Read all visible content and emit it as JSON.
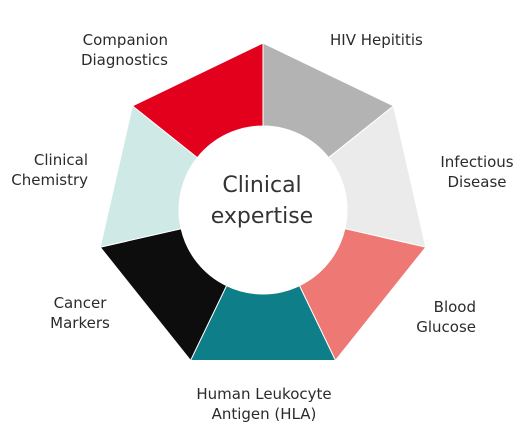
{
  "center": {
    "line1": "Clinical",
    "line2": "expertise"
  },
  "segments": [
    {
      "id": "hiv",
      "lines": [
        "HIV Hepititis"
      ],
      "color": "#b3b3b3"
    },
    {
      "id": "infectious",
      "lines": [
        "Infectious",
        "Disease"
      ],
      "color": "#ebebeb"
    },
    {
      "id": "blood",
      "lines": [
        "Blood",
        "Glucose"
      ],
      "color": "#ee7873"
    },
    {
      "id": "hla",
      "lines": [
        "Human Leukocyte",
        "Antigen (HLA)"
      ],
      "color": "#0e7e88"
    },
    {
      "id": "cancer",
      "lines": [
        "Cancer",
        "Markers"
      ],
      "color": "#0d0d0d"
    },
    {
      "id": "chemistry",
      "lines": [
        "Clinical",
        "Chemistry"
      ],
      "color": "#cfe9e6"
    },
    {
      "id": "companion",
      "lines": [
        "Companion",
        "Diagnostics"
      ],
      "color": "#e2001d"
    }
  ]
}
